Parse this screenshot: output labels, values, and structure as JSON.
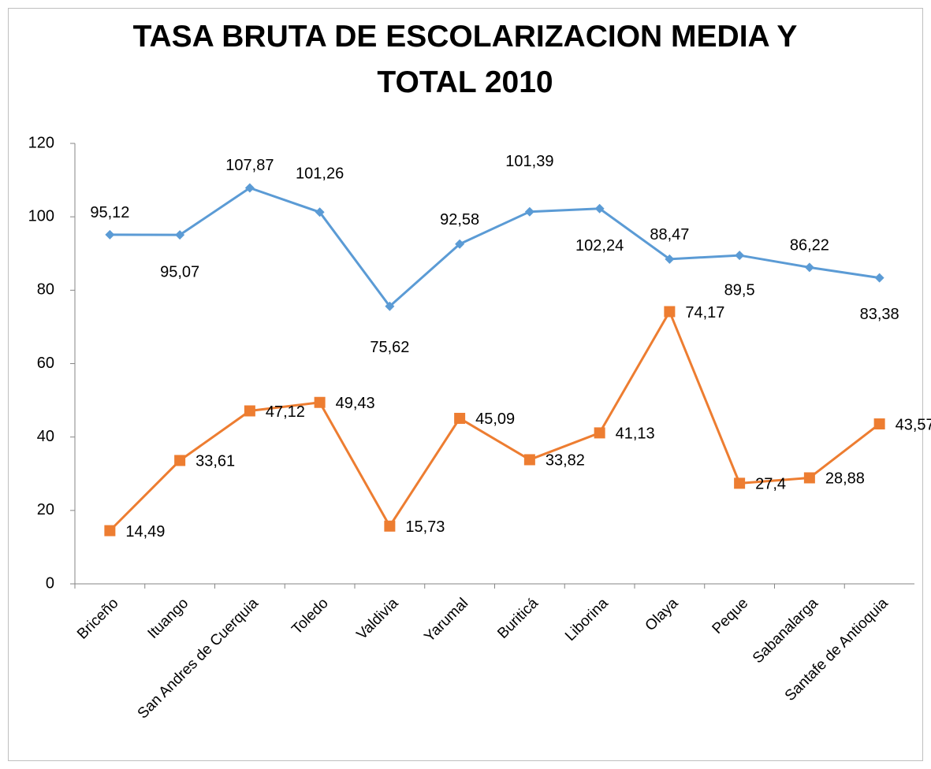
{
  "chart_data": {
    "type": "line",
    "title": "TASA BRUTA DE ESCOLARIZACION MEDIA Y TOTAL 2010",
    "categories": [
      "Briceño",
      "Ituango",
      "San Andres de Cuerquia",
      "Toledo",
      "Valdivia",
      "Yarumal",
      "Buriticá",
      "Liborina",
      "Olaya",
      "Peque",
      "Sabanalarga",
      "Santafe de Antioquia"
    ],
    "series": [
      {
        "color": "#5b9bd5",
        "marker": "diamond",
        "values": [
          95.12,
          95.07,
          107.87,
          101.26,
          75.62,
          92.58,
          101.39,
          102.24,
          88.47,
          89.5,
          86.22,
          83.38
        ],
        "value_labels": [
          "95,12",
          "95,07",
          "107,87",
          "101,26",
          "75,62",
          "92,58",
          "101,39",
          "102,24",
          "88,47",
          "89,5",
          "86,22",
          "83,38"
        ]
      },
      {
        "color": "#ed7d31",
        "marker": "square",
        "values": [
          14.49,
          33.61,
          47.12,
          49.43,
          15.73,
          45.09,
          33.82,
          41.13,
          74.17,
          27.4,
          28.88,
          43.57
        ],
        "value_labels": [
          "14,49",
          "33,61",
          "47,12",
          "49,43",
          "15,73",
          "45,09",
          "33,82",
          "41,13",
          "74,17",
          "27,4",
          "28,88",
          "43,57"
        ]
      }
    ],
    "ylim": [
      0,
      120
    ],
    "yticks": [
      0,
      20,
      40,
      60,
      80,
      100,
      120
    ],
    "grid": false
  }
}
